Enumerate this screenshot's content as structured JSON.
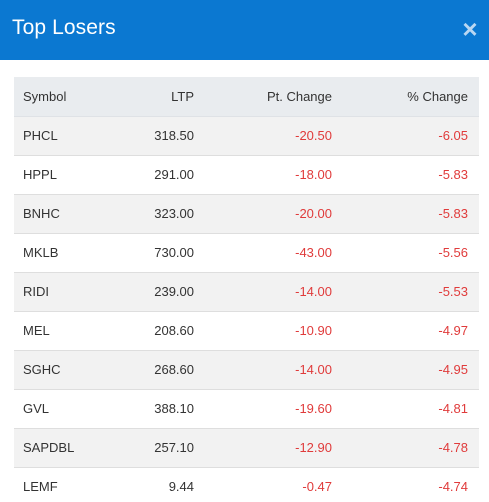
{
  "modal": {
    "title": "Top Losers",
    "close_glyph": "×",
    "close_icon": "close-icon"
  },
  "table": {
    "headers": [
      "Symbol",
      "LTP",
      "Pt. Change",
      "% Change"
    ],
    "rows": [
      {
        "symbol": "PHCL",
        "ltp": "318.50",
        "pt_change": "-20.50",
        "pct_change": "-6.05"
      },
      {
        "symbol": "HPPL",
        "ltp": "291.00",
        "pt_change": "-18.00",
        "pct_change": "-5.83"
      },
      {
        "symbol": "BNHC",
        "ltp": "323.00",
        "pt_change": "-20.00",
        "pct_change": "-5.83"
      },
      {
        "symbol": "MKLB",
        "ltp": "730.00",
        "pt_change": "-43.00",
        "pct_change": "-5.56"
      },
      {
        "symbol": "RIDI",
        "ltp": "239.00",
        "pt_change": "-14.00",
        "pct_change": "-5.53"
      },
      {
        "symbol": "MEL",
        "ltp": "208.60",
        "pt_change": "-10.90",
        "pct_change": "-4.97"
      },
      {
        "symbol": "SGHC",
        "ltp": "268.60",
        "pt_change": "-14.00",
        "pct_change": "-4.95"
      },
      {
        "symbol": "GVL",
        "ltp": "388.10",
        "pt_change": "-19.60",
        "pct_change": "-4.81"
      },
      {
        "symbol": "SAPDBL",
        "ltp": "257.10",
        "pt_change": "-12.90",
        "pct_change": "-4.78"
      },
      {
        "symbol": "LEMF",
        "ltp": "9.44",
        "pt_change": "-0.47",
        "pct_change": "-4.74"
      }
    ]
  },
  "colors": {
    "header_bg": "#0b78d1",
    "negative": "#e03b3b"
  }
}
